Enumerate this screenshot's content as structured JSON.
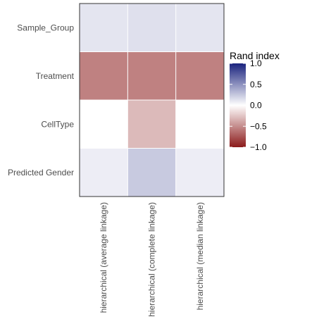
{
  "chart_data": {
    "type": "heatmap",
    "title": "",
    "xlabel": "",
    "ylabel": "",
    "x_categories": [
      "hierarchical (average linkage)",
      "hierarchical (complete linkage)",
      "hierarchical (median linkage)"
    ],
    "y_categories": [
      "Sample_Group",
      "Treatment",
      "CellType",
      "Predicted Gender"
    ],
    "values": [
      [
        0.12,
        0.14,
        0.12
      ],
      [
        -0.55,
        -0.55,
        -0.55
      ],
      [
        0.0,
        -0.3,
        0.0
      ],
      [
        0.08,
        0.24,
        0.08
      ]
    ],
    "legend": {
      "title": "Rand index",
      "ticks": [
        "1.0",
        "0.5",
        "0.0",
        "−0.5",
        "−1.0"
      ],
      "tick_values": [
        1.0,
        0.5,
        0.0,
        -0.5,
        -1.0
      ],
      "limits": [
        -1.0,
        1.0
      ],
      "position": "right"
    },
    "colors": {
      "low": "#8b1a1a",
      "mid": "#ffffff",
      "high": "#1a237e",
      "grid_line": "#ffffff",
      "panel_border": "#333333"
    },
    "grid": true
  }
}
